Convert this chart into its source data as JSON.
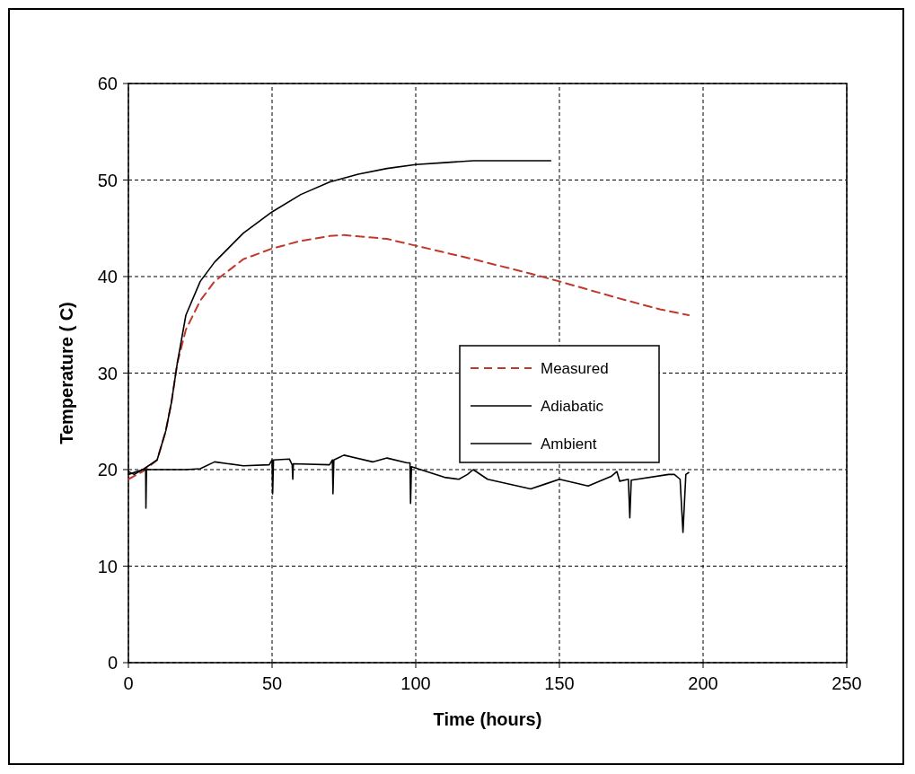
{
  "chart_data": {
    "type": "line",
    "xlabel": "Time (hours)",
    "ylabel": "Temperature ( C)",
    "xlim": [
      0,
      250
    ],
    "xticks": [
      0,
      50,
      100,
      150,
      200,
      250
    ],
    "ylim": [
      0,
      60
    ],
    "yticks": [
      0,
      10,
      20,
      30,
      40,
      50,
      60
    ],
    "grid": true,
    "legend": "right",
    "marker": "none",
    "series": [
      {
        "name": "Measured",
        "color": "#c0392b",
        "line_style": "dashed",
        "x": [
          0,
          5,
          10,
          13,
          15,
          17,
          20,
          25,
          30,
          40,
          50,
          60,
          70,
          75,
          90,
          100,
          120,
          140,
          150,
          170,
          185,
          195
        ],
        "values": [
          19,
          19.8,
          21,
          24,
          27,
          31,
          34.5,
          37.5,
          39.5,
          41.8,
          42.9,
          43.7,
          44.2,
          44.3,
          43.9,
          43.2,
          41.8,
          40.3,
          39.5,
          37.8,
          36.6,
          36
        ]
      },
      {
        "name": "Adiabatic",
        "color": "#000000",
        "line_style": "solid",
        "x": [
          0,
          5,
          10,
          13,
          15,
          17,
          20,
          25,
          30,
          40,
          50,
          60,
          70,
          80,
          90,
          100,
          110,
          120,
          147
        ],
        "values": [
          19.5,
          20,
          21,
          24,
          27,
          31,
          36,
          39.5,
          41.5,
          44.5,
          46.7,
          48.5,
          49.8,
          50.6,
          51.2,
          51.6,
          51.8,
          52,
          52
        ]
      },
      {
        "name": "Ambient",
        "color": "#000000",
        "line_style": "solid",
        "x": [
          0,
          2,
          5,
          6,
          6.1,
          6.3,
          20,
          25,
          30,
          40,
          49,
          50,
          50.2,
          50.5,
          56,
          57,
          57.2,
          57.4,
          70,
          71,
          71.2,
          71.5,
          75,
          85,
          90,
          97,
          98,
          98.2,
          98.5,
          110,
          115,
          118,
          120,
          125,
          140,
          145,
          150,
          160,
          168,
          170,
          171,
          174,
          174.5,
          175,
          188,
          190,
          192,
          193,
          194,
          195
        ],
        "values": [
          19.8,
          19.5,
          20,
          20,
          16,
          20,
          20,
          20.1,
          20.8,
          20.4,
          20.5,
          21,
          17.5,
          21,
          21.1,
          20.5,
          19,
          20.6,
          20.5,
          21,
          17.5,
          21,
          21.5,
          20.8,
          21.2,
          20.7,
          20.7,
          16.5,
          20.3,
          19.2,
          19,
          19.5,
          20,
          19,
          18,
          18.5,
          19,
          18.3,
          19.3,
          19.8,
          18.8,
          19,
          15,
          18.9,
          19.5,
          19.5,
          19,
          13.5,
          19.5,
          19.7
        ]
      }
    ]
  }
}
